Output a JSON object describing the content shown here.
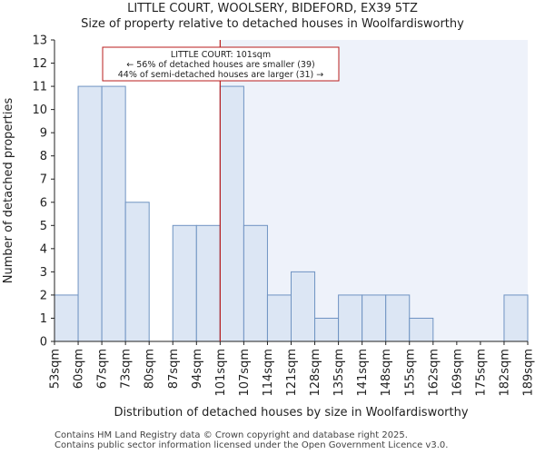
{
  "title": "LITTLE COURT, WOOLSERY, BIDEFORD, EX39 5TZ",
  "subtitle": "Size of property relative to detached houses in Woolfardisworthy",
  "footer": [
    "Contains HM Land Registry data © Crown copyright and database right 2025.",
    "Contains public sector information licensed under the Open Government Licence v3.0."
  ],
  "colors": {
    "bar_fill": "#dce6f4",
    "bar_stroke": "#6f93c2",
    "marker": "#b81d1d",
    "right_shade": "#eef2fa"
  },
  "chart_data": {
    "type": "bar",
    "xlabel": "Distribution of detached houses by size in Woolfardisworthy",
    "ylabel": "Number of detached properties",
    "ylim": [
      0,
      13
    ],
    "yticks": [
      0,
      1,
      2,
      3,
      4,
      5,
      6,
      7,
      8,
      9,
      10,
      11,
      12,
      13
    ],
    "bin_labels": [
      "53sqm",
      "60sqm",
      "67sqm",
      "73sqm",
      "80sqm",
      "87sqm",
      "94sqm",
      "101sqm",
      "107sqm",
      "114sqm",
      "121sqm",
      "128sqm",
      "135sqm",
      "141sqm",
      "148sqm",
      "155sqm",
      "162sqm",
      "169sqm",
      "175sqm",
      "182sqm",
      "189sqm"
    ],
    "values": [
      2,
      11,
      11,
      6,
      0,
      5,
      5,
      11,
      5,
      2,
      3,
      1,
      2,
      2,
      2,
      1,
      0,
      0,
      0,
      2
    ],
    "marker_value": "101sqm",
    "annotation": [
      "LITTLE COURT: 101sqm",
      "← 56% of detached houses are smaller (39)",
      "44% of semi-detached houses are larger (31) →"
    ]
  }
}
